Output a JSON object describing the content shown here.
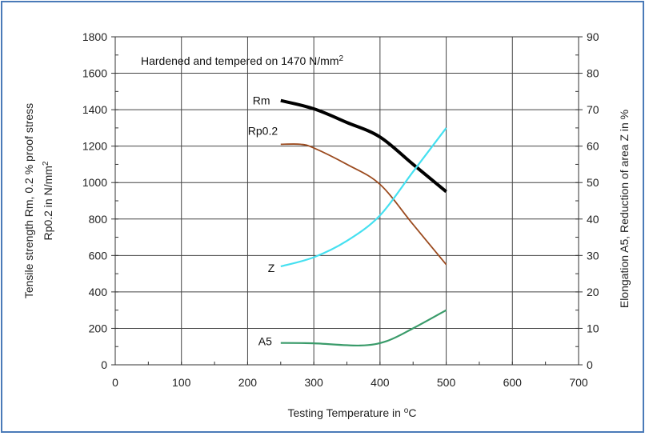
{
  "chart_data": {
    "type": "line",
    "title_parts": {
      "prefix": "Hardened and tempered on 1470 N/mm",
      "sup": "2"
    },
    "xlabel_parts": {
      "prefix": "Testing Temperature in ",
      "sup": "o",
      "suffix": "C"
    },
    "ylabel_line1": "Tensile strength Rm, 0.2 % proof stress",
    "ylabel_line2_parts": {
      "prefix": "Rp0.2 in N/mm",
      "sup": "2"
    },
    "y2label": "Elongation A5, Reduction of area Z in %",
    "xlim": [
      0,
      700
    ],
    "ylim": [
      0,
      1800
    ],
    "y2lim": [
      0,
      90
    ],
    "x_ticks": [
      "0",
      "100",
      "200",
      "300",
      "400",
      "500",
      "600",
      "700"
    ],
    "y_ticks": [
      "0",
      "200",
      "400",
      "600",
      "800",
      "1000",
      "1200",
      "1400",
      "1600",
      "1800"
    ],
    "y2_ticks": [
      "0",
      "10",
      "20",
      "30",
      "40",
      "50",
      "60",
      "70",
      "80",
      "90"
    ],
    "grid": true,
    "series": [
      {
        "name": "Rm",
        "axis": "left",
        "color": "#000000",
        "x": [
          250,
          300,
          350,
          400,
          450,
          500
        ],
        "y": [
          1450,
          1405,
          1330,
          1250,
          1100,
          950
        ]
      },
      {
        "name": "Rp0.2",
        "axis": "left",
        "color": "#9b4a1e",
        "x": [
          250,
          280,
          300,
          350,
          400,
          450,
          500
        ],
        "y": [
          1210,
          1210,
          1190,
          1100,
          990,
          770,
          550
        ]
      },
      {
        "name": "Z",
        "axis": "right",
        "color": "#45e0f0",
        "x": [
          250,
          300,
          350,
          400,
          450,
          500
        ],
        "y": [
          27,
          29.5,
          34,
          41,
          53,
          65
        ]
      },
      {
        "name": "A5",
        "axis": "right",
        "color": "#3a9b6a",
        "x": [
          250,
          300,
          370,
          410,
          450,
          500
        ],
        "y": [
          6,
          5.9,
          5.3,
          6.5,
          10,
          15
        ]
      }
    ],
    "curve_labels": [
      {
        "text": "Rm",
        "series": "Rm"
      },
      {
        "text": "Rp0.2",
        "series": "Rp0.2"
      },
      {
        "text": "Z",
        "series": "Z"
      },
      {
        "text": "A5",
        "series": "A5"
      }
    ]
  }
}
